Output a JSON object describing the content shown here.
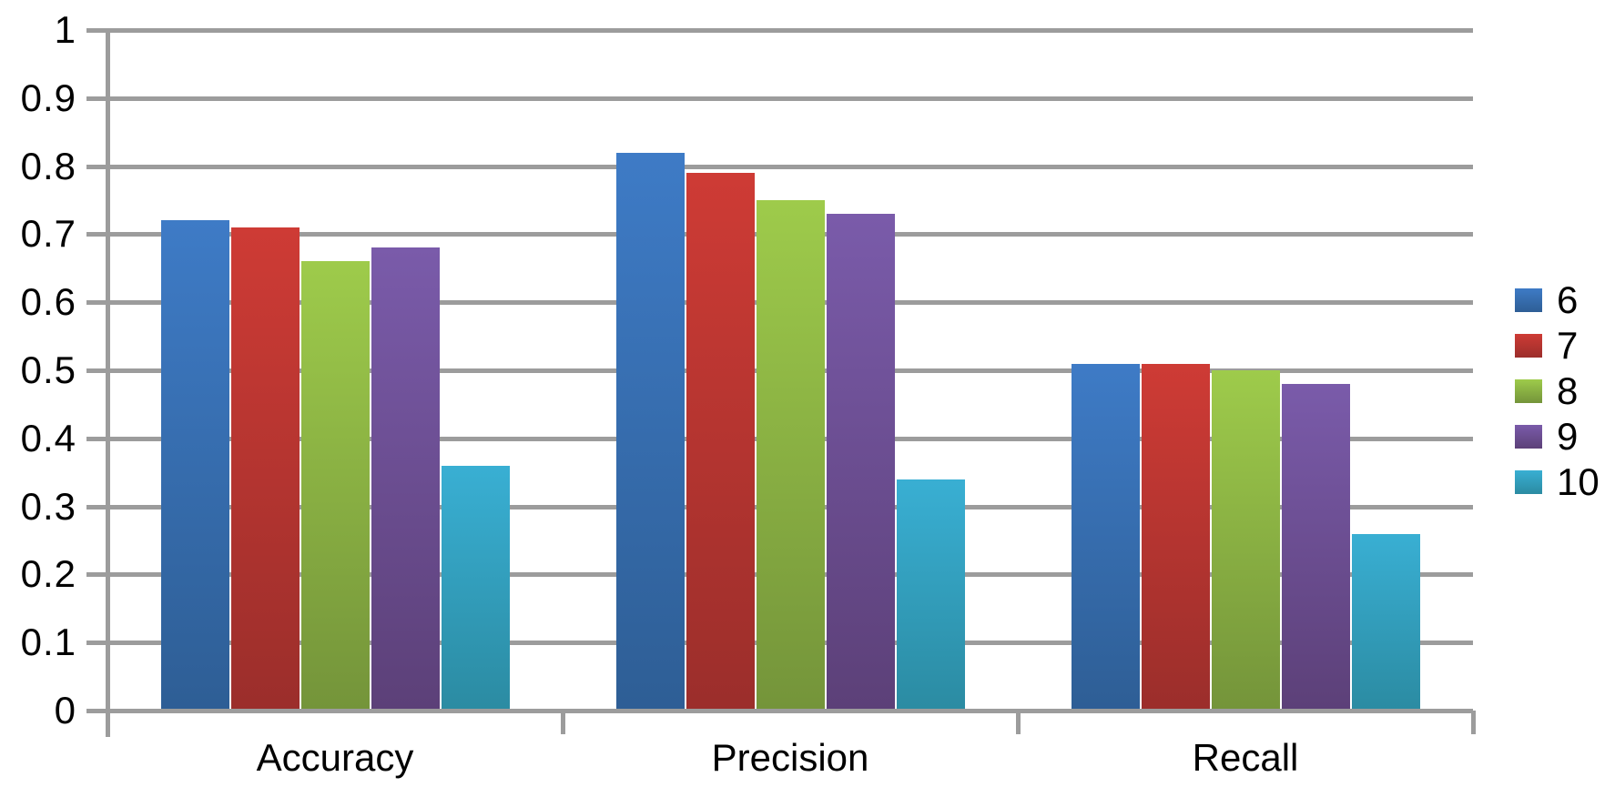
{
  "chart_data": {
    "type": "bar",
    "title": "",
    "xlabel": "",
    "ylabel": "",
    "categories": [
      "Accuracy",
      "Precision",
      "Recall"
    ],
    "series": [
      {
        "name": "6",
        "values": [
          0.72,
          0.82,
          0.51
        ],
        "color_top": "#3E7BC6",
        "color_bottom": "#2E5E95"
      },
      {
        "name": "7",
        "values": [
          0.71,
          0.79,
          0.51
        ],
        "color_top": "#CE3B35",
        "color_bottom": "#9B2E2B"
      },
      {
        "name": "8",
        "values": [
          0.66,
          0.75,
          0.5
        ],
        "color_top": "#9ECB4B",
        "color_bottom": "#74943A"
      },
      {
        "name": "9",
        "values": [
          0.68,
          0.73,
          0.48
        ],
        "color_top": "#7A5BAA",
        "color_bottom": "#5C4078"
      },
      {
        "name": "10",
        "values": [
          0.36,
          0.34,
          0.26
        ],
        "color_top": "#39AFD3",
        "color_bottom": "#2B8BA2"
      }
    ],
    "y_ticks": [
      "1",
      "0.9",
      "0.8",
      "0.7",
      "0.6",
      "0.5",
      "0.4",
      "0.3",
      "0.2",
      "0.1",
      "0"
    ],
    "ylim": [
      0,
      1
    ],
    "grid": true,
    "legend_position": "right"
  },
  "colors": {
    "gridline": "#9C9C9C",
    "axis": "#9C9C9C",
    "text": "#000000",
    "background": "#FFFFFF"
  }
}
